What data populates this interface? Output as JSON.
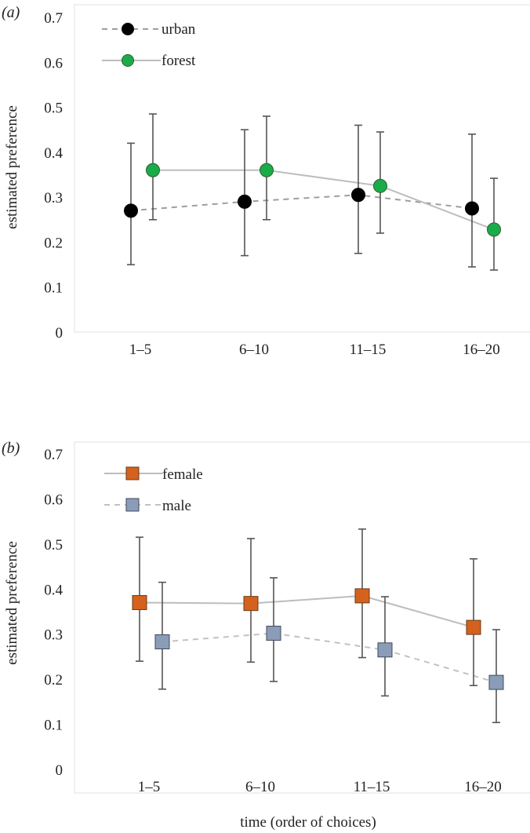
{
  "chart_data": [
    {
      "type": "line",
      "panel_label": "(a)",
      "title": "",
      "xlabel": "",
      "ylabel": "estimated preference",
      "ylim": [
        0,
        0.7
      ],
      "yticks": [
        "0",
        "0.1",
        "0.2",
        "0.3",
        "0.4",
        "0.5",
        "0.6",
        "0.7"
      ],
      "categories": [
        "1–5",
        "6–10",
        "11–15",
        "16–20"
      ],
      "legend_position": "top-left",
      "series": [
        {
          "name": "urban",
          "marker": "circle",
          "line_style": "dashed",
          "color": "#000000",
          "line_color": "#9e9e9e",
          "values": [
            0.27,
            0.29,
            0.305,
            0.275
          ],
          "err_low": [
            0.15,
            0.17,
            0.175,
            0.145
          ],
          "err_high": [
            0.42,
            0.45,
            0.46,
            0.44
          ]
        },
        {
          "name": "forest",
          "marker": "circle",
          "line_style": "solid",
          "color": "#1aac4a",
          "line_color": "#bdbdbd",
          "values": [
            0.36,
            0.36,
            0.325,
            0.228
          ],
          "err_low": [
            0.25,
            0.25,
            0.22,
            0.138
          ],
          "err_high": [
            0.485,
            0.48,
            0.445,
            0.342
          ]
        }
      ]
    },
    {
      "type": "line",
      "panel_label": "(b)",
      "title": "",
      "xlabel": "time (order of choices)",
      "ylabel": "estimated preference",
      "ylim": [
        0,
        0.7
      ],
      "yticks": [
        "0",
        "0.1",
        "0.2",
        "0.3",
        "0.4",
        "0.5",
        "0.6",
        "0.7"
      ],
      "categories": [
        "1–5",
        "6–10",
        "11–15",
        "16–20"
      ],
      "legend_position": "top-left",
      "series": [
        {
          "name": "female",
          "marker": "square",
          "line_style": "solid",
          "color": "#d4621c",
          "line_color": "#bdbdbd",
          "values": [
            0.37,
            0.368,
            0.385,
            0.315
          ],
          "err_low": [
            0.24,
            0.238,
            0.248,
            0.186
          ],
          "err_high": [
            0.515,
            0.512,
            0.533,
            0.467
          ]
        },
        {
          "name": "male",
          "marker": "square",
          "line_style": "dashed",
          "color": "#8a9cb8",
          "line_color": "#c2c2c2",
          "values": [
            0.283,
            0.302,
            0.265,
            0.193
          ],
          "err_low": [
            0.178,
            0.195,
            0.163,
            0.104
          ],
          "err_high": [
            0.415,
            0.425,
            0.383,
            0.31
          ]
        }
      ]
    }
  ]
}
